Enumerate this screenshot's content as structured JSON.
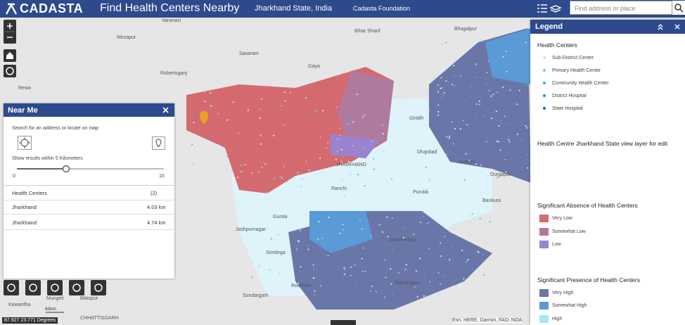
{
  "header": {
    "logo": "CADASTA",
    "title": "Find Health Centers Nearby",
    "subtitle": "Jharkhand State, India",
    "org": "Cadasta Foundation",
    "search_placeholder": "Find address or place"
  },
  "map_labels": [
    "Varanasi",
    "Mirzapur",
    "Sasaram",
    "Robertsganj",
    "Rewa",
    "Gaya",
    "Bihar Sharif",
    "Bhagalpur",
    "Giridih",
    "Dhanbad",
    "Asansol",
    "Durgapur",
    "Ranchi",
    "Purulia",
    "Bankura",
    "Gumla",
    "Jashpurnagar",
    "Simdega",
    "Jamshedpur",
    "Rourkela",
    "Sundargarh",
    "Rairangpur",
    "JHARKHAND",
    "Mungeli",
    "Bilaspur",
    "Kawardha",
    "CHHATTISGARH"
  ],
  "near_me": {
    "title": "Near Me",
    "instruction": "Search for an address or locate on map",
    "radius_label": "Show results within 5 Kilometers",
    "slider_min": "0",
    "slider_max": "15",
    "results_header": "Health Centers",
    "results_count": "(2)",
    "results": [
      [
        "Jharkhand",
        "4.03 km"
      ],
      [
        "Jharkhand",
        "4.74 km"
      ]
    ]
  },
  "legend": {
    "title": "Legend",
    "sections": [
      {
        "title": "Health Centers",
        "kind": "dot",
        "items": [
          {
            "label": "Sub-District Center",
            "color": "#b4e8f2"
          },
          {
            "label": "Primary Health Center",
            "color": "#6ccfe6"
          },
          {
            "label": "Community Health Center",
            "color": "#2fb3d8"
          },
          {
            "label": "District Hospital",
            "color": "#1591c0"
          },
          {
            "label": "State Hospital",
            "color": "#0e6d9a"
          }
        ]
      },
      {
        "title": "Health Centre Jharkhand State view layer for edit",
        "kind": "none",
        "items": []
      },
      {
        "title": "Significant Absence of Health Centers",
        "kind": "swatch",
        "items": [
          {
            "label": "Very Low",
            "color": "#d46a6f"
          },
          {
            "label": "Somewhat Low",
            "color": "#b07a9f"
          },
          {
            "label": "Low",
            "color": "#9a82cf"
          }
        ]
      },
      {
        "title": "Significant Presence of Health Centers",
        "kind": "swatch",
        "items": [
          {
            "label": "Very High",
            "color": "#6a76a8"
          },
          {
            "label": "Somewhat High",
            "color": "#5a9ad6"
          },
          {
            "label": "High",
            "color": "#a9e5f7"
          }
        ]
      }
    ]
  },
  "scale": "60km",
  "coordinates": "87.927 23.771 Degrees",
  "attribution": "Esri, HERE, Garmin, FAO, NOA"
}
